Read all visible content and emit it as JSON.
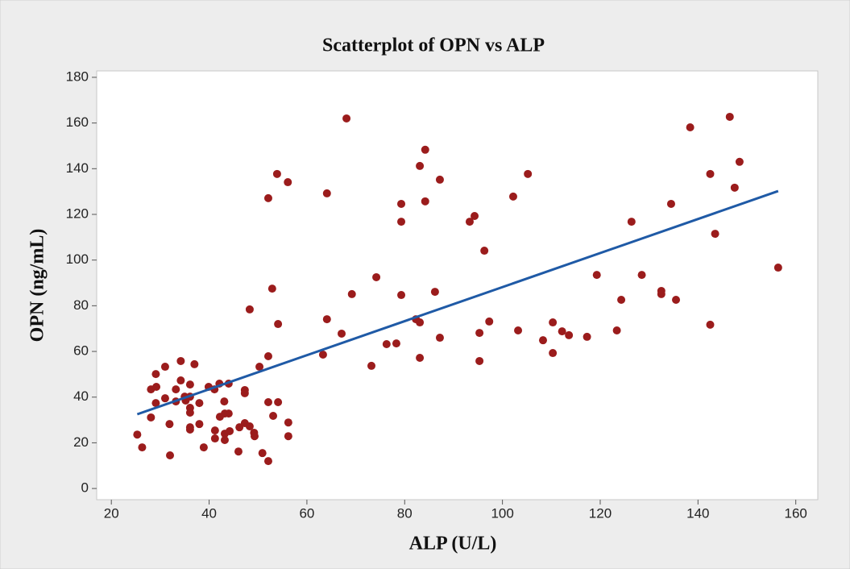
{
  "chart_data": {
    "type": "scatter",
    "title": "Scatterplot of OPN vs ALP",
    "x_label": "ALP (U/L)",
    "y_label": "OPN (ng/mL)",
    "color": "#9b1c1c",
    "x": [
      25.3,
      26.3,
      28.1,
      28.1,
      29.2,
      29.1,
      29.1,
      31.0,
      31.0,
      31.9,
      32.0,
      33.2,
      33.2,
      34.2,
      34.2,
      35.0,
      35.2,
      36.1,
      36.1,
      36.1,
      36.1,
      36.1,
      36.1,
      37.0,
      38.0,
      38.0,
      38.9,
      39.9,
      41.1,
      41.2,
      41.2,
      42.1,
      42.2,
      43.1,
      43.2,
      43.2,
      43.2,
      44.0,
      44.0,
      44.2,
      46.0,
      46.2,
      47.3,
      47.3,
      47.3,
      48.3,
      48.3,
      49.2,
      49.3,
      50.3,
      50.9,
      52.1,
      52.1,
      52.1,
      52.1,
      52.9,
      53.1,
      53.9,
      54.1,
      54.1,
      56.1,
      56.2,
      56.2,
      63.3,
      64.1,
      64.1,
      67.1,
      68.1,
      69.2,
      73.2,
      74.2,
      76.3,
      78.3,
      79.3,
      79.3,
      79.3,
      82.3,
      83.1,
      83.1,
      83.1,
      84.2,
      84.2,
      86.2,
      87.2,
      87.2,
      93.3,
      94.3,
      95.3,
      95.3,
      96.3,
      97.3,
      102.2,
      103.2,
      105.2,
      108.3,
      110.3,
      110.3,
      112.2,
      113.6,
      117.3,
      119.3,
      123.4,
      124.3,
      126.4,
      128.5,
      132.5,
      132.5,
      134.5,
      135.5,
      138.4,
      142.5,
      142.5,
      143.5,
      146.5,
      147.5,
      148.5,
      156.4
    ],
    "values": [
      23.6,
      18.0,
      31.1,
      43.4,
      44.5,
      37.4,
      50.1,
      53.3,
      39.5,
      28.2,
      14.5,
      43.4,
      38.1,
      47.3,
      55.8,
      40.2,
      38.5,
      45.5,
      40.2,
      35.3,
      33.2,
      26.8,
      25.8,
      54.4,
      37.4,
      28.2,
      18.0,
      44.5,
      43.4,
      25.4,
      21.9,
      45.9,
      31.4,
      38.1,
      32.8,
      24.0,
      21.2,
      45.9,
      32.8,
      25.1,
      16.2,
      26.8,
      43.1,
      41.7,
      28.6,
      78.4,
      27.2,
      24.4,
      22.9,
      53.3,
      15.5,
      12.0,
      57.9,
      37.8,
      127.1,
      87.5,
      31.8,
      137.7,
      72.0,
      37.8,
      134.1,
      28.9,
      22.9,
      58.6,
      74.1,
      129.2,
      67.8,
      162.0,
      85.1,
      53.7,
      92.5,
      63.2,
      63.5,
      124.6,
      116.8,
      84.7,
      74.1,
      72.7,
      141.2,
      57.2,
      148.3,
      125.7,
      86.1,
      135.2,
      66.0,
      116.8,
      119.3,
      55.8,
      68.1,
      104.1,
      73.1,
      127.8,
      69.2,
      137.7,
      64.9,
      72.7,
      59.3,
      68.8,
      67.1,
      66.4,
      93.5,
      69.2,
      82.6,
      116.8,
      93.5,
      86.5,
      85.1,
      124.6,
      82.6,
      158.1,
      71.7,
      137.7,
      111.5,
      162.7,
      131.7,
      143.0,
      96.7
    ],
    "fit_line": {
      "x": [
        25.3,
        156.4
      ],
      "y": [
        32.5,
        130.2
      ],
      "color": "#1f5aa6"
    },
    "xlim": [
      17,
      164.5
    ],
    "ylim": [
      -4.9,
      182.8
    ],
    "xticks": [
      20,
      40,
      60,
      80,
      100,
      120,
      140,
      160
    ],
    "yticks": [
      0,
      20,
      40,
      60,
      80,
      100,
      120,
      140,
      160,
      180
    ]
  }
}
